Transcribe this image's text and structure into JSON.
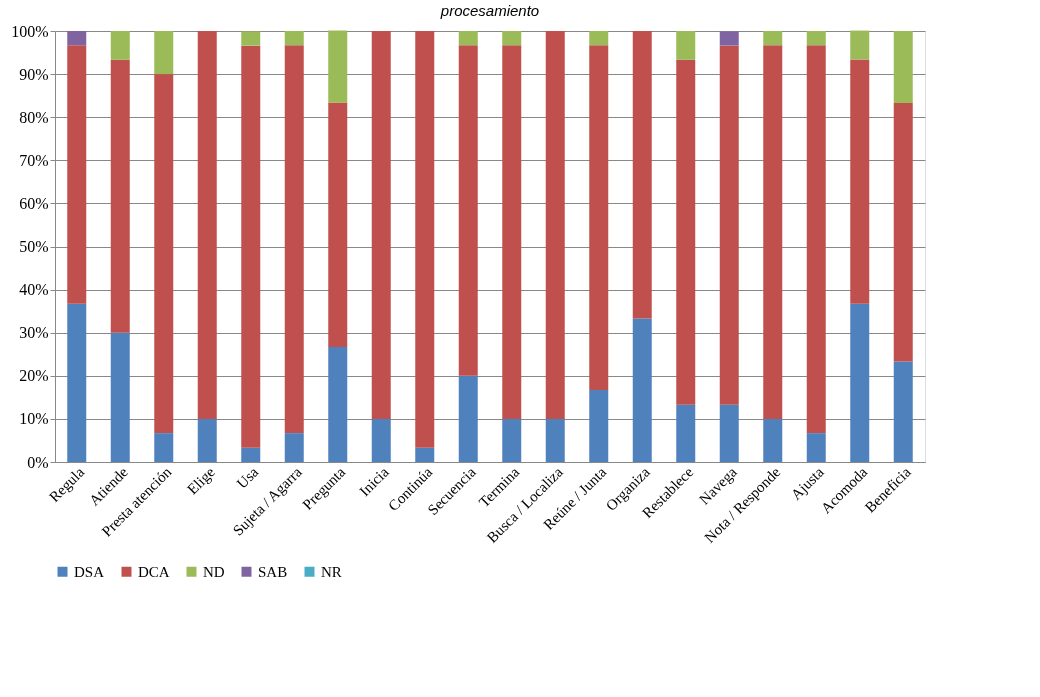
{
  "chart_data": {
    "type": "bar",
    "title": "procesamiento",
    "stacked": true,
    "categories": [
      "Regula",
      "Atiende",
      "Presta atención",
      "Elige",
      "Usa",
      "Sujeta / Agarra",
      "Pregunta",
      "Inicia",
      "Continúa",
      "Secuencia",
      "Termina",
      "Busca / Localiza",
      "Reúne / Junta",
      "Organiza",
      "Restablece",
      "Navega",
      "Nota / Responde",
      "Ajusta",
      "Acomoda",
      "Beneficia"
    ],
    "series": [
      {
        "name": "DSA",
        "color": "#4f81bd",
        "values": [
          36.7,
          30,
          6.7,
          10,
          3.3,
          6.7,
          26.7,
          10,
          3.3,
          20,
          10,
          10,
          16.7,
          33.3,
          13.3,
          13.3,
          10,
          6.7,
          36.7,
          23.3
        ]
      },
      {
        "name": "DCA",
        "color": "#c0504d",
        "values": [
          60,
          63.3,
          83.3,
          90,
          93.3,
          90,
          56.7,
          90,
          96.7,
          76.7,
          86.7,
          90,
          80,
          66.7,
          80,
          83.3,
          86.7,
          90,
          56.7,
          60
        ]
      },
      {
        "name": "ND",
        "color": "#9bbb59",
        "values": [
          0,
          6.7,
          10,
          0,
          3.3,
          3.3,
          16.7,
          0,
          0,
          3.3,
          3.3,
          0,
          3.3,
          0,
          6.7,
          0,
          3.3,
          3.3,
          6.7,
          16.7
        ]
      },
      {
        "name": "SAB",
        "color": "#8064a2",
        "values": [
          3.3,
          0,
          0,
          0,
          0,
          0,
          0,
          0,
          0,
          0,
          0,
          0,
          0,
          0,
          0,
          3.3,
          0,
          0,
          0,
          0
        ]
      },
      {
        "name": "NR",
        "color": "#4bacc6",
        "values": [
          0,
          0,
          0,
          0,
          0,
          0,
          0,
          0,
          0,
          0,
          0,
          0,
          0,
          0,
          0,
          0,
          0,
          0,
          0,
          0
        ]
      }
    ],
    "ylim": [
      0,
      100
    ],
    "yticks": [
      {
        "value": 0,
        "label": "0%"
      },
      {
        "value": 10,
        "label": "10%"
      },
      {
        "value": 20,
        "label": "20%"
      },
      {
        "value": 30,
        "label": "30%"
      },
      {
        "value": 40,
        "label": "40%"
      },
      {
        "value": 50,
        "label": "50%"
      },
      {
        "value": 60,
        "label": "60%"
      },
      {
        "value": 70,
        "label": "70%"
      },
      {
        "value": 80,
        "label": "80%"
      },
      {
        "value": 90,
        "label": "90%"
      },
      {
        "value": 100,
        "label": "100%"
      }
    ],
    "grid": "y",
    "legend": "bottom"
  }
}
